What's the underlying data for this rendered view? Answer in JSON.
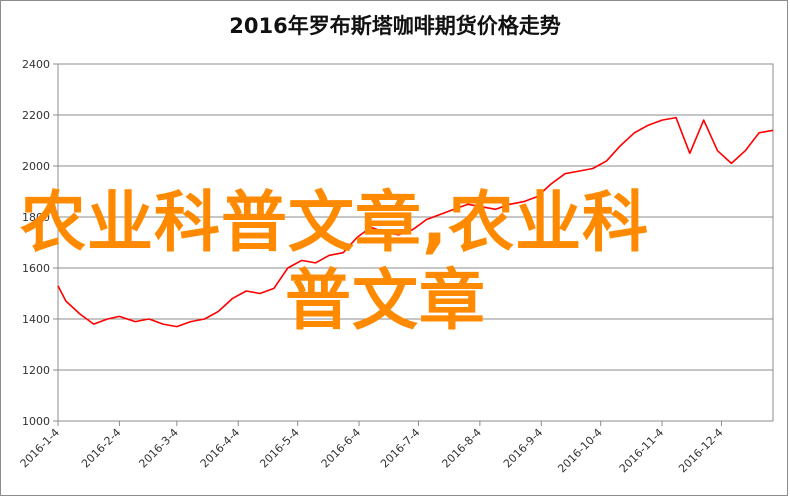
{
  "chart_data": {
    "type": "line",
    "title": "2016年罗布斯塔咖啡期货价格走势",
    "xlabel": "",
    "ylabel": "",
    "ylim": [
      1000,
      2400
    ],
    "yticks": [
      "1000",
      "1200",
      "1400",
      "1600",
      "1800",
      "2000",
      "2200",
      "2400"
    ],
    "xticks": [
      "2016-1-4",
      "2016-2-4",
      "2016-3-4",
      "2016-4-4",
      "2016-5-4",
      "2016-6-4",
      "2016-7-4",
      "2016-8-4",
      "2016-9-4",
      "2016-10-4",
      "2016-11-4",
      "2016-12-4"
    ],
    "grid": "horizontal",
    "legend": "none",
    "series": [
      {
        "color": "#ff0000",
        "x": [
          "2016-1-4",
          "2016-1-8",
          "2016-1-15",
          "2016-1-22",
          "2016-1-29",
          "2016-2-4",
          "2016-2-12",
          "2016-2-19",
          "2016-2-26",
          "2016-3-4",
          "2016-3-11",
          "2016-3-18",
          "2016-3-25",
          "2016-4-1",
          "2016-4-8",
          "2016-4-15",
          "2016-4-22",
          "2016-4-29",
          "2016-5-6",
          "2016-5-13",
          "2016-5-20",
          "2016-5-27",
          "2016-6-3",
          "2016-6-10",
          "2016-6-17",
          "2016-6-24",
          "2016-7-1",
          "2016-7-8",
          "2016-7-15",
          "2016-7-22",
          "2016-7-29",
          "2016-8-5",
          "2016-8-12",
          "2016-8-19",
          "2016-8-26",
          "2016-9-2",
          "2016-9-9",
          "2016-9-16",
          "2016-9-23",
          "2016-9-30",
          "2016-10-7",
          "2016-10-14",
          "2016-10-21",
          "2016-10-28",
          "2016-11-4",
          "2016-11-11",
          "2016-11-18",
          "2016-11-25",
          "2016-12-2",
          "2016-12-9",
          "2016-12-16",
          "2016-12-23",
          "2016-12-30"
        ],
        "values": [
          1530,
          1470,
          1420,
          1380,
          1400,
          1410,
          1390,
          1400,
          1380,
          1370,
          1390,
          1400,
          1430,
          1480,
          1510,
          1500,
          1520,
          1600,
          1630,
          1620,
          1650,
          1660,
          1720,
          1760,
          1740,
          1730,
          1750,
          1790,
          1810,
          1830,
          1850,
          1840,
          1830,
          1850,
          1860,
          1880,
          1930,
          1970,
          1980,
          1990,
          2020,
          2080,
          2130,
          2160,
          2180,
          2190,
          2050,
          2180,
          2060,
          2010,
          2060,
          2130,
          2140
        ]
      }
    ]
  },
  "watermark": {
    "line1": "农业科普文章,农业科",
    "line2": "普文章"
  }
}
